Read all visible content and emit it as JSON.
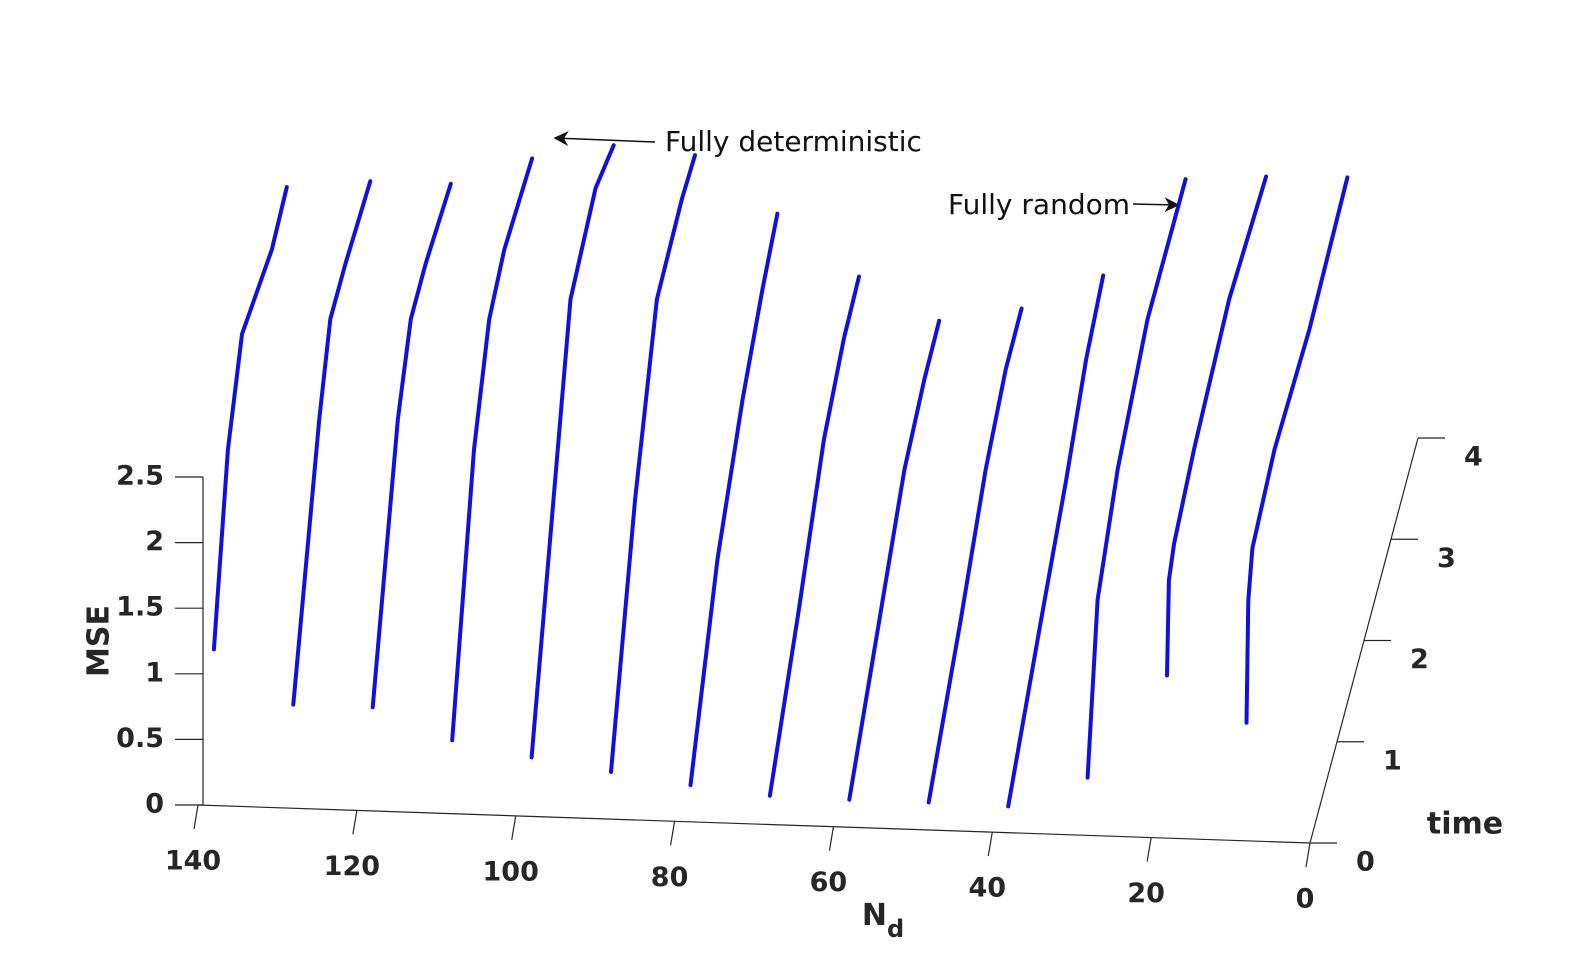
{
  "chart_data": {
    "type": "line3d",
    "x_label": "N",
    "x_label_sub": "d",
    "y_label": "time",
    "z_label": "MSE",
    "color": "#1010e0",
    "xlim": [
      0,
      140
    ],
    "xticks": [
      140,
      120,
      100,
      80,
      60,
      40,
      20,
      0
    ],
    "ylim": [
      0,
      4
    ],
    "yticks": [
      0,
      1,
      2,
      3,
      4
    ],
    "zlim": [
      0,
      2.5
    ],
    "zticks": [
      0,
      0.5,
      1,
      1.5,
      2,
      2.5
    ],
    "annotations": [
      "Fully deterministic",
      "Fully random"
    ],
    "series": [
      {
        "nd": 138,
        "time": [
          0,
          0.52,
          1.04,
          2.15,
          2.7
        ],
        "mse": [
          1.19,
          2.31,
          2.79,
          2.58,
          2.63
        ]
      },
      {
        "nd": 128,
        "time": [
          0,
          0.96,
          1.37,
          1.93,
          2.85
        ],
        "mse": [
          0.79,
          2.22,
          2.67,
          2.66,
          2.58
        ]
      },
      {
        "nd": 118,
        "time": [
          0,
          0.93,
          1.41,
          1.96,
          2.89
        ],
        "mse": [
          0.79,
          2.27,
          2.66,
          2.66,
          2.55
        ]
      },
      {
        "nd": 108,
        "time": [
          0,
          0.81,
          1.37,
          1.93,
          2.96
        ],
        "mse": [
          0.56,
          2.15,
          2.71,
          2.81,
          2.71
        ]
      },
      {
        "nd": 98,
        "time": [
          0,
          0.81,
          1.44,
          2.37,
          3.04
        ],
        "mse": [
          0.45,
          1.79,
          2.83,
          2.96,
          2.77
        ]
      },
      {
        "nd": 88,
        "time": [
          0,
          0.89,
          1.7,
          2.63,
          3.11
        ],
        "mse": [
          0.36,
          1.75,
          2.65,
          2.7,
          2.66
        ]
      },
      {
        "nd": 78,
        "time": [
          0,
          1,
          1.93,
          2.67,
          3.22
        ],
        "mse": [
          0.28,
          1.23,
          1.73,
          2,
          2.15
        ]
      },
      {
        "nd": 68,
        "time": [
          0,
          1.07,
          2,
          2.74,
          3.3
        ],
        "mse": [
          0.22,
          0.81,
          1.39,
          1.59,
          1.63
        ]
      },
      {
        "nd": 58,
        "time": [
          0,
          1.11,
          2.04,
          2.78,
          3.33
        ],
        "mse": [
          0.21,
          0.72,
          1.15,
          1.27,
          1.29
        ]
      },
      {
        "nd": 48,
        "time": [
          0,
          1.19,
          2.11,
          2.85,
          3.44
        ],
        "mse": [
          0.21,
          0.69,
          1.12,
          1.31,
          1.32
        ]
      },
      {
        "nd": 38,
        "time": [
          0,
          1.22,
          2.15,
          2.89,
          3.52
        ],
        "mse": [
          0.2,
          0.68,
          1.03,
          1.38,
          1.53
        ]
      },
      {
        "nd": 28,
        "time": [
          0,
          0.37,
          1.11,
          2.22,
          3.63
        ],
        "mse": [
          0.44,
          1.51,
          1.93,
          2.22,
          2.2
        ]
      },
      {
        "nd": 18,
        "time": [
          0,
          0.07,
          0.26,
          1,
          2.3,
          3.67
        ],
        "mse": [
          1.24,
          1.91,
          2.04,
          2.19,
          2.33,
          2.21
        ]
      },
      {
        "nd": 8,
        "time": [
          0,
          0.07,
          0.22,
          1.04,
          2.33,
          3.74
        ],
        "mse": [
          0.9,
          1.78,
          2.06,
          2.18,
          2.1,
          2.17
        ]
      }
    ]
  }
}
